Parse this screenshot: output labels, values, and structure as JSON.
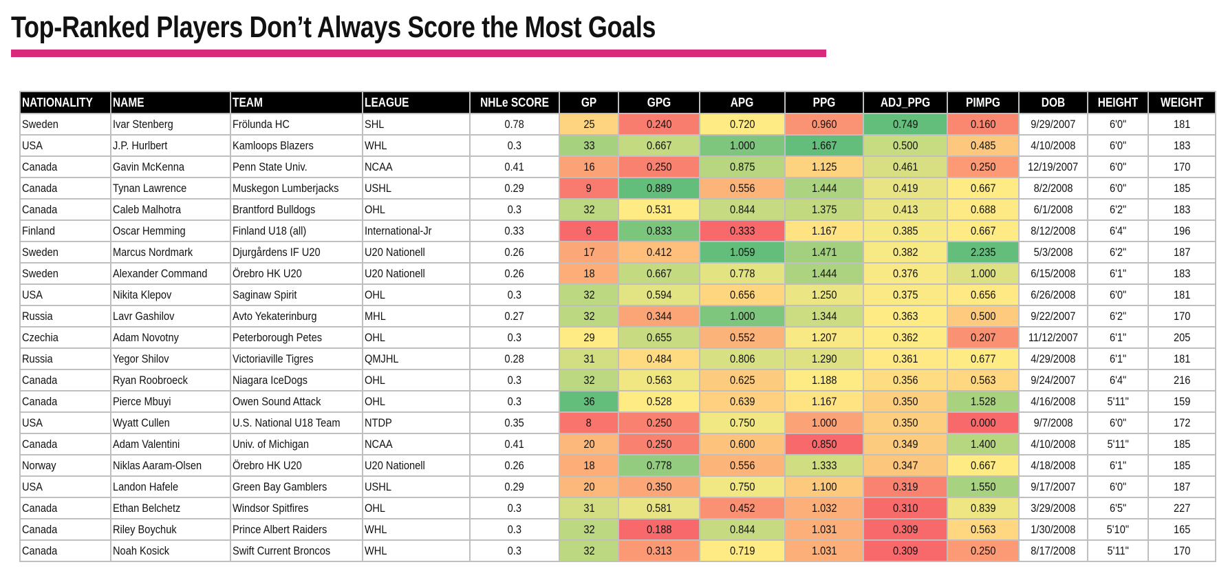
{
  "title": "Top-Ranked Players Don’t Always Score the Most Goals",
  "accent_color": "#d9297a",
  "columns": [
    "NATIONALITY",
    "NAME",
    "TEAM",
    "LEAGUE",
    "NHLe SCORE",
    "GP",
    "GPG",
    "APG",
    "PPG",
    "ADJ_PPG",
    "PIMPG",
    "DOB",
    "HEIGHT",
    "WEIGHT"
  ],
  "rows": [
    [
      "Sweden",
      "Ivar Stenberg",
      "Frölunda HC",
      "SHL",
      "0.78",
      "25",
      "0.240",
      "0.720",
      "0.960",
      "0.749",
      "0.160",
      "9/29/2007",
      "6'0\"",
      "181"
    ],
    [
      "USA",
      "J.P. Hurlbert",
      "Kamloops Blazers",
      "WHL",
      "0.3",
      "33",
      "0.667",
      "1.000",
      "1.667",
      "0.500",
      "0.485",
      "4/10/2008",
      "6'0\"",
      "183"
    ],
    [
      "Canada",
      "Gavin McKenna",
      "Penn State Univ.",
      "NCAA",
      "0.41",
      "16",
      "0.250",
      "0.875",
      "1.125",
      "0.461",
      "0.250",
      "12/19/2007",
      "6'0\"",
      "170"
    ],
    [
      "Canada",
      "Tynan Lawrence",
      "Muskegon Lumberjacks",
      "USHL",
      "0.29",
      "9",
      "0.889",
      "0.556",
      "1.444",
      "0.419",
      "0.667",
      "8/2/2008",
      "6'0\"",
      "185"
    ],
    [
      "Canada",
      "Caleb Malhotra",
      "Brantford Bulldogs",
      "OHL",
      "0.3",
      "32",
      "0.531",
      "0.844",
      "1.375",
      "0.413",
      "0.688",
      "6/1/2008",
      "6'2\"",
      "183"
    ],
    [
      "Finland",
      "Oscar Hemming",
      "Finland U18 (all)",
      "International-Jr",
      "0.33",
      "6",
      "0.833",
      "0.333",
      "1.167",
      "0.385",
      "0.667",
      "8/12/2008",
      "6'4\"",
      "196"
    ],
    [
      "Sweden",
      "Marcus Nordmark",
      "Djurgårdens IF U20",
      "U20 Nationell",
      "0.26",
      "17",
      "0.412",
      "1.059",
      "1.471",
      "0.382",
      "2.235",
      "5/3/2008",
      "6'2\"",
      "187"
    ],
    [
      "Sweden",
      "Alexander Command",
      "Örebro HK U20",
      "U20 Nationell",
      "0.26",
      "18",
      "0.667",
      "0.778",
      "1.444",
      "0.376",
      "1.000",
      "6/15/2008",
      "6'1\"",
      "183"
    ],
    [
      "USA",
      "Nikita Klepov",
      "Saginaw Spirit",
      "OHL",
      "0.3",
      "32",
      "0.594",
      "0.656",
      "1.250",
      "0.375",
      "0.656",
      "6/26/2008",
      "6'0\"",
      "181"
    ],
    [
      "Russia",
      "Lavr Gashilov",
      "Avto Yekaterinburg",
      "MHL",
      "0.27",
      "32",
      "0.344",
      "1.000",
      "1.344",
      "0.363",
      "0.500",
      "9/22/2007",
      "6'2\"",
      "170"
    ],
    [
      "Czechia",
      "Adam Novotny",
      "Peterborough Petes",
      "OHL",
      "0.3",
      "29",
      "0.655",
      "0.552",
      "1.207",
      "0.362",
      "0.207",
      "11/12/2007",
      "6'1\"",
      "205"
    ],
    [
      "Russia",
      "Yegor Shilov",
      "Victoriaville Tigres",
      "QMJHL",
      "0.28",
      "31",
      "0.484",
      "0.806",
      "1.290",
      "0.361",
      "0.677",
      "4/29/2008",
      "6'1\"",
      "181"
    ],
    [
      "Canada",
      "Ryan Roobroeck",
      "Niagara IceDogs",
      "OHL",
      "0.3",
      "32",
      "0.563",
      "0.625",
      "1.188",
      "0.356",
      "0.563",
      "9/24/2007",
      "6'4\"",
      "216"
    ],
    [
      "Canada",
      "Pierce Mbuyi",
      "Owen Sound Attack",
      "OHL",
      "0.3",
      "36",
      "0.528",
      "0.639",
      "1.167",
      "0.350",
      "1.528",
      "4/16/2008",
      "5'11\"",
      "159"
    ],
    [
      "USA",
      "Wyatt Cullen",
      "U.S. National U18 Team",
      "NTDP",
      "0.35",
      "8",
      "0.250",
      "0.750",
      "1.000",
      "0.350",
      "0.000",
      "9/7/2008",
      "6'0\"",
      "172"
    ],
    [
      "Canada",
      "Adam Valentini",
      "Univ. of Michigan",
      "NCAA",
      "0.41",
      "20",
      "0.250",
      "0.600",
      "0.850",
      "0.349",
      "1.400",
      "4/10/2008",
      "5'11\"",
      "185"
    ],
    [
      "Norway",
      "Niklas Aaram-Olsen",
      "Örebro HK U20",
      "U20 Nationell",
      "0.26",
      "18",
      "0.778",
      "0.556",
      "1.333",
      "0.347",
      "0.667",
      "4/18/2008",
      "6'1\"",
      "185"
    ],
    [
      "USA",
      "Landon Hafele",
      "Green Bay Gamblers",
      "USHL",
      "0.29",
      "20",
      "0.350",
      "0.750",
      "1.100",
      "0.319",
      "1.550",
      "9/17/2007",
      "6'0\"",
      "187"
    ],
    [
      "Canada",
      "Ethan Belchetz",
      "Windsor Spitfires",
      "OHL",
      "0.3",
      "31",
      "0.581",
      "0.452",
      "1.032",
      "0.310",
      "0.839",
      "3/29/2008",
      "6'5\"",
      "227"
    ],
    [
      "Canada",
      "Riley Boychuk",
      "Prince Albert Raiders",
      "WHL",
      "0.3",
      "32",
      "0.188",
      "0.844",
      "1.031",
      "0.309",
      "0.563",
      "1/30/2008",
      "5'10\"",
      "165"
    ],
    [
      "Canada",
      "Noah Kosick",
      "Swift Current Broncos",
      "WHL",
      "0.3",
      "32",
      "0.313",
      "0.719",
      "1.031",
      "0.309",
      "0.250",
      "8/17/2008",
      "5'11\"",
      "170"
    ]
  ],
  "heatmap_colors": {
    "low": "#f8696b",
    "mid": "#ffeb84",
    "high": "#63be7b"
  }
}
